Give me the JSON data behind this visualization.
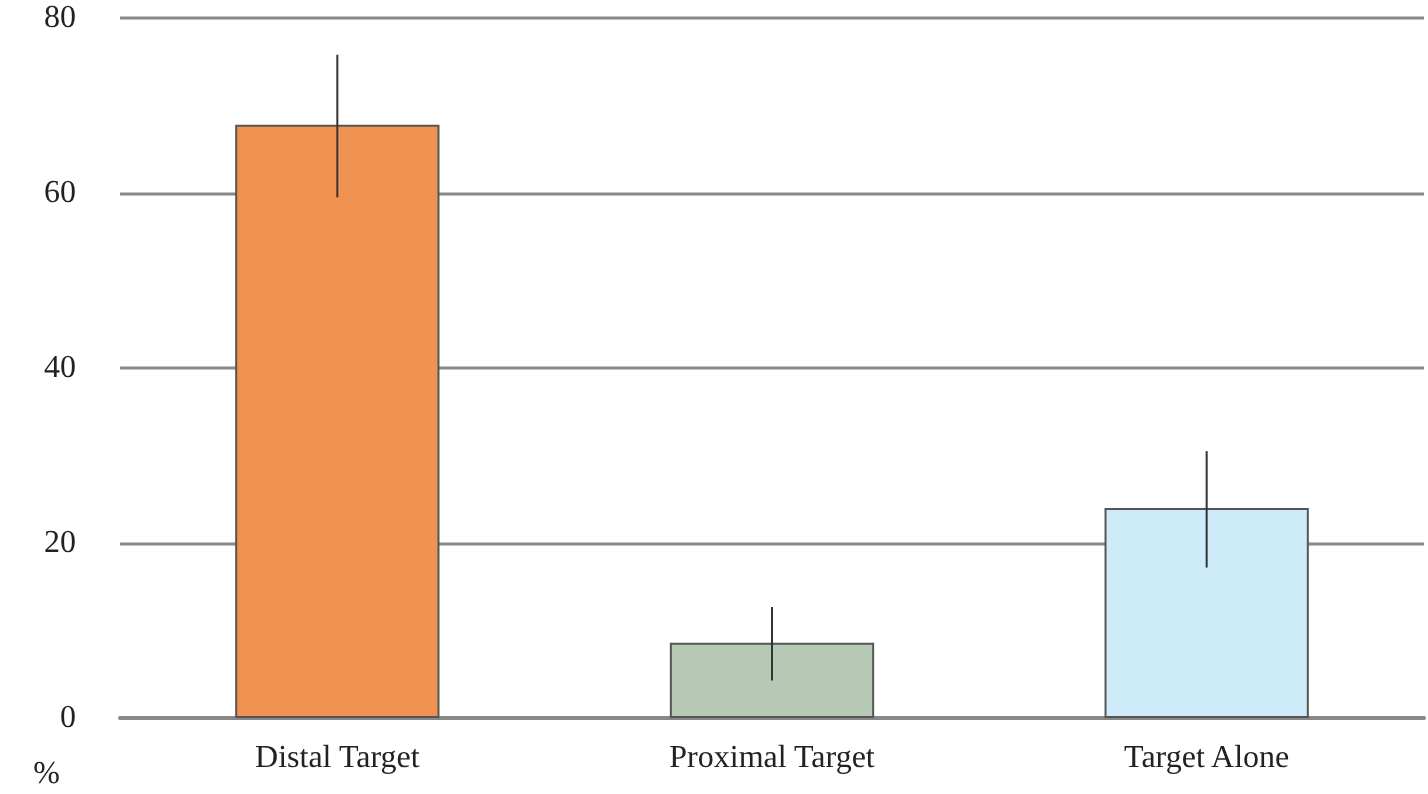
{
  "chart_data": {
    "type": "bar",
    "ylabel": "%",
    "categories": [
      "Distal Target",
      "Proximal Target",
      "Target Alone"
    ],
    "values": [
      67.8,
      8.6,
      24.0
    ],
    "colors": [
      "#f09352",
      "#b5c9b4",
      "#cdebf9"
    ],
    "errors": [
      [
        59.5,
        75.8
      ],
      [
        4.3,
        12.7
      ],
      [
        17.2,
        30.5
      ]
    ],
    "ylim": [
      0,
      80
    ],
    "yticks": [
      0,
      20,
      40,
      60,
      80
    ],
    "grid": "y"
  }
}
